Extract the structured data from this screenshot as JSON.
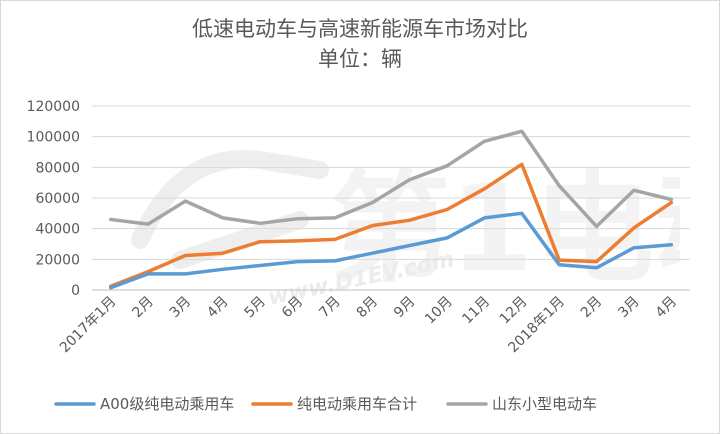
{
  "chart_data": {
    "type": "line",
    "title": "低速电动车与高速新能源车市场对比",
    "subtitle": "单位：辆",
    "xlabel": "",
    "ylabel": "",
    "categories": [
      "2017年1月",
      "2月",
      "3月",
      "4月",
      "5月",
      "6月",
      "7月",
      "8月",
      "9月",
      "10月",
      "11月",
      "12月",
      "2018年1月",
      "2月",
      "3月",
      "4月"
    ],
    "ylim": [
      0,
      120000
    ],
    "yticks": [
      "0",
      "20000",
      "40000",
      "60000",
      "80000",
      "100000",
      "120000"
    ],
    "yticks_values": [
      0,
      20000,
      40000,
      60000,
      80000,
      100000,
      120000
    ],
    "grid": true,
    "legend_position": "bottom",
    "series": [
      {
        "name": "A00级纯电动乘用车",
        "color": "#5b9bd5",
        "values": [
          1500,
          10500,
          10500,
          13500,
          16000,
          18500,
          19000,
          24000,
          29000,
          34000,
          47000,
          50000,
          16500,
          14500,
          27500,
          29500
        ]
      },
      {
        "name": "纯电动乘用车合计",
        "color": "#ed7d31",
        "values": [
          2500,
          12000,
          22500,
          24000,
          31500,
          32000,
          33000,
          42000,
          45500,
          52500,
          66000,
          82000,
          19500,
          18500,
          40500,
          57000
        ]
      },
      {
        "name": "山东小型电动车",
        "color": "#a5a5a5",
        "values": [
          46000,
          43000,
          58000,
          47000,
          43500,
          46500,
          47000,
          57000,
          72000,
          81000,
          97000,
          103500,
          68000,
          41500,
          65000,
          59000
        ]
      }
    ]
  },
  "watermark": {
    "text": "第1电动",
    "url_text": "www.D1EV.com",
    "color": "#e8e8e8"
  }
}
